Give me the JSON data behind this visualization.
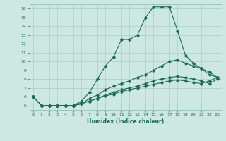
{
  "xlabel": "Humidex (Indice chaleur)",
  "ylabel": "",
  "bg_color": "#cce8e0",
  "grid_color": "#aaccc4",
  "line_color": "#1a6b5a",
  "xlim": [
    -0.5,
    23.5
  ],
  "ylim": [
    4.5,
    16.5
  ],
  "xticks": [
    0,
    1,
    2,
    3,
    4,
    5,
    6,
    7,
    8,
    9,
    10,
    11,
    12,
    13,
    14,
    15,
    16,
    17,
    18,
    19,
    20,
    21,
    22,
    23
  ],
  "yticks": [
    5,
    6,
    7,
    8,
    9,
    10,
    11,
    12,
    13,
    14,
    15,
    16
  ],
  "line1": {
    "x": [
      0,
      1,
      2,
      3,
      4,
      5,
      6,
      7,
      8,
      9,
      10,
      11,
      12,
      13,
      14,
      15,
      16,
      17,
      18,
      19,
      20,
      21,
      22,
      23
    ],
    "y": [
      6.0,
      5.0,
      5.0,
      5.0,
      5.0,
      5.0,
      5.5,
      6.5,
      8.0,
      9.5,
      10.5,
      12.5,
      12.5,
      13.0,
      15.0,
      16.2,
      16.2,
      16.2,
      13.5,
      10.7,
      9.8,
      9.2,
      8.8,
      8.2
    ]
  },
  "line2": {
    "x": [
      0,
      1,
      2,
      3,
      4,
      5,
      6,
      7,
      8,
      9,
      10,
      11,
      12,
      13,
      14,
      15,
      16,
      17,
      18,
      19,
      20,
      21,
      22,
      23
    ],
    "y": [
      6.0,
      5.0,
      5.0,
      5.0,
      5.0,
      5.0,
      5.2,
      5.8,
      6.2,
      6.8,
      7.2,
      7.5,
      7.8,
      8.2,
      8.5,
      9.0,
      9.5,
      10.0,
      10.2,
      9.8,
      9.5,
      9.2,
      8.5,
      8.2
    ]
  },
  "line3": {
    "x": [
      0,
      1,
      2,
      3,
      4,
      5,
      6,
      7,
      8,
      9,
      10,
      11,
      12,
      13,
      14,
      15,
      16,
      17,
      18,
      19,
      20,
      21,
      22,
      23
    ],
    "y": [
      6.0,
      5.0,
      5.0,
      5.0,
      5.0,
      5.0,
      5.2,
      5.5,
      5.8,
      6.2,
      6.5,
      6.8,
      7.0,
      7.2,
      7.5,
      7.8,
      8.0,
      8.2,
      8.3,
      8.2,
      8.0,
      7.8,
      7.5,
      8.0
    ]
  },
  "line4": {
    "x": [
      1,
      2,
      3,
      4,
      5,
      6,
      7,
      8,
      9,
      10,
      11,
      12,
      13,
      14,
      15,
      16,
      17,
      18,
      19,
      20,
      21,
      22,
      23
    ],
    "y": [
      5.0,
      5.0,
      5.0,
      5.0,
      5.0,
      5.3,
      5.5,
      5.8,
      6.1,
      6.3,
      6.6,
      6.8,
      7.0,
      7.2,
      7.4,
      7.6,
      7.8,
      7.9,
      7.8,
      7.6,
      7.5,
      7.8,
      8.2
    ]
  }
}
